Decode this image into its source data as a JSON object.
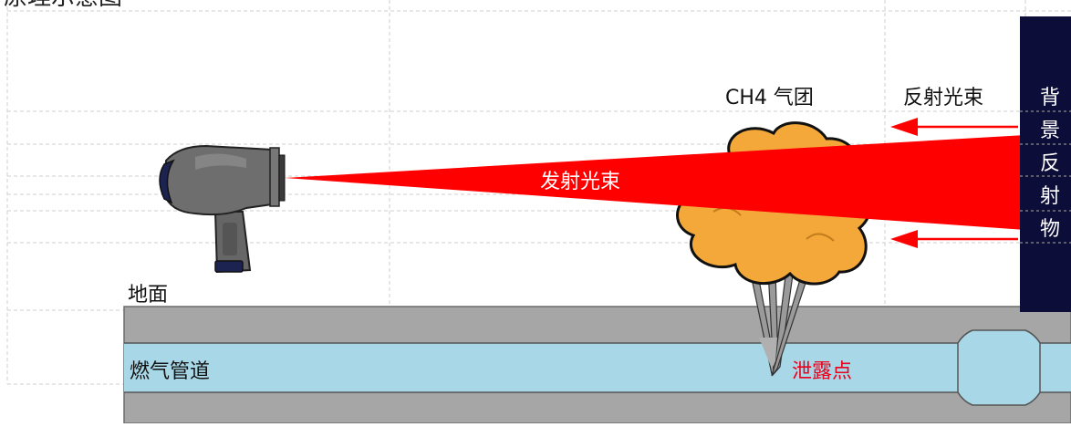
{
  "header": {
    "partial_title": "原理示意图"
  },
  "labels": {
    "ch4_cloud": "CH4 气团",
    "reflected_beam": "反射光束",
    "background_reflector": [
      "背",
      "景",
      "反",
      "射",
      "物"
    ],
    "emitted_beam": "发射光束",
    "ground": "地面",
    "gas_pipeline": "燃气管道",
    "leak_point": "泄露点"
  },
  "colors": {
    "beam": "#ff0000",
    "leak_text": "#e8001c",
    "cloud": "#f4a83a",
    "pipe": "#a8d8e8",
    "ground": "#a6a6a6",
    "reflector": "#0d0d3a",
    "device_body": "#6e6e6e",
    "device_accent": "#1c2350"
  }
}
